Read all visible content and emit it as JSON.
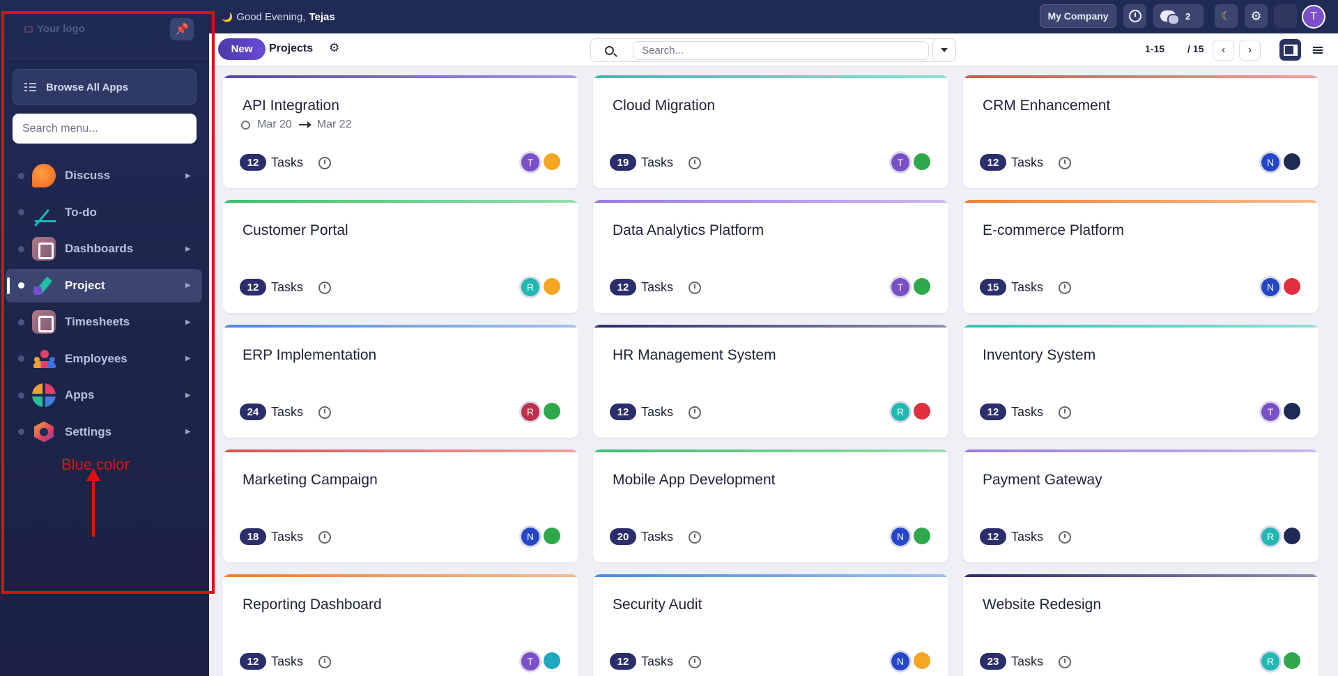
{
  "sidebar": {
    "logo_text": "Your logo",
    "browse_label": "Browse All Apps",
    "search_placeholder": "Search menu...",
    "items": [
      {
        "label": "Discuss",
        "icon": "discuss-icon",
        "active": false,
        "has_caret": true
      },
      {
        "label": "To-do",
        "icon": "todo-icon",
        "active": false,
        "has_caret": false
      },
      {
        "label": "Dashboards",
        "icon": "dashboards-icon",
        "active": false,
        "has_caret": true
      },
      {
        "label": "Project",
        "icon": "project-icon",
        "active": true,
        "has_caret": true
      },
      {
        "label": "Timesheets",
        "icon": "timesheets-icon",
        "active": false,
        "has_caret": true
      },
      {
        "label": "Employees",
        "icon": "employees-icon",
        "active": false,
        "has_caret": true
      },
      {
        "label": "Apps",
        "icon": "apps-icon",
        "active": false,
        "has_caret": true
      },
      {
        "label": "Settings",
        "icon": "settings-icon",
        "active": false,
        "has_caret": true
      }
    ]
  },
  "annotation": {
    "text": "Blue color",
    "color": "#e01010"
  },
  "topbar": {
    "greeting": "Good Evening,",
    "user_name": "Tejas",
    "company_label": "My Company",
    "chat_count": "2",
    "avatar_initial": "T"
  },
  "control": {
    "new_label": "New",
    "title": "Projects",
    "search_placeholder": "Search...",
    "pager_range": "1-15",
    "pager_total": "/ 15"
  },
  "cards": [
    {
      "title": "API Integration",
      "date_start": "Mar 20",
      "date_end": "Mar 22",
      "count": "12",
      "tasks_label": "Tasks",
      "accent": "#5b3fd0",
      "av1": {
        "initial": "T",
        "color": "#7a4fc8"
      },
      "av2_color": "#f5a623"
    },
    {
      "title": "Cloud Migration",
      "count": "19",
      "tasks_label": "Tasks",
      "accent": "#2ec4b6",
      "av1": {
        "initial": "T",
        "color": "#7a4fc8"
      },
      "av2_color": "#2ea84a"
    },
    {
      "title": "CRM Enhancement",
      "count": "12",
      "tasks_label": "Tasks",
      "accent": "#e05050",
      "av1": {
        "initial": "N",
        "color": "#2446c8"
      },
      "av2_color": "#1f2a55"
    },
    {
      "title": "Customer Portal",
      "count": "12",
      "tasks_label": "Tasks",
      "accent": "#3cc06a",
      "av1": {
        "initial": "R",
        "color": "#20b8b0"
      },
      "av2_color": "#f5a623"
    },
    {
      "title": "Data Analytics Platform",
      "count": "12",
      "tasks_label": "Tasks",
      "accent": "#9b7ae0",
      "av1": {
        "initial": "T",
        "color": "#7a4fc8"
      },
      "av2_color": "#2ea84a"
    },
    {
      "title": "E-commerce Platform",
      "count": "15",
      "tasks_label": "Tasks",
      "accent": "#f08030",
      "av1": {
        "initial": "N",
        "color": "#2446c8"
      },
      "av2_color": "#e03040"
    },
    {
      "title": "ERP Implementation",
      "count": "24",
      "tasks_label": "Tasks",
      "accent": "#4a8ae0",
      "av1": {
        "initial": "R",
        "color": "#c0304a"
      },
      "av2_color": "#2ea84a"
    },
    {
      "title": "HR Management System",
      "count": "12",
      "tasks_label": "Tasks",
      "accent": "#2a2e6a",
      "av1": {
        "initial": "R",
        "color": "#20b8b0"
      },
      "av2_color": "#e03040"
    },
    {
      "title": "Inventory System",
      "count": "12",
      "tasks_label": "Tasks",
      "accent": "#2ec4b6",
      "av1": {
        "initial": "T",
        "color": "#7a4fc8"
      },
      "av2_color": "#1f2a55"
    },
    {
      "title": "Marketing Campaign",
      "count": "18",
      "tasks_label": "Tasks",
      "accent": "#e05050",
      "av1": {
        "initial": "N",
        "color": "#2446c8"
      },
      "av2_color": "#2ea84a"
    },
    {
      "title": "Mobile App Development",
      "count": "20",
      "tasks_label": "Tasks",
      "accent": "#3cc06a",
      "av1": {
        "initial": "N",
        "color": "#2446c8"
      },
      "av2_color": "#2ea84a"
    },
    {
      "title": "Payment Gateway",
      "count": "12",
      "tasks_label": "Tasks",
      "accent": "#9b7ae0",
      "av1": {
        "initial": "R",
        "color": "#20b8b0"
      },
      "av2_color": "#1f2a55"
    },
    {
      "title": "Reporting Dashboard",
      "count": "12",
      "tasks_label": "Tasks",
      "accent": "#f08030",
      "av1": {
        "initial": "T",
        "color": "#7a4fc8"
      },
      "av2_color": "#20a8c0"
    },
    {
      "title": "Security Audit",
      "count": "12",
      "tasks_label": "Tasks",
      "accent": "#4a8ae0",
      "av1": {
        "initial": "N",
        "color": "#2446c8"
      },
      "av2_color": "#f5a623"
    },
    {
      "title": "Website Redesign",
      "count": "23",
      "tasks_label": "Tasks",
      "accent": "#2a2e6a",
      "av1": {
        "initial": "R",
        "color": "#20b8b0"
      },
      "av2_color": "#2ea84a"
    }
  ]
}
